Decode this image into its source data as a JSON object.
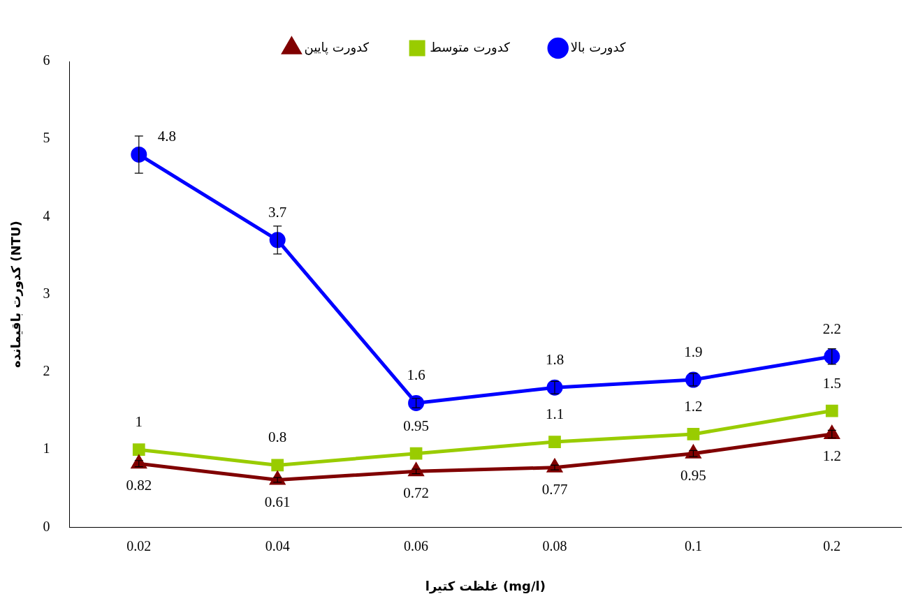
{
  "chart_data": {
    "type": "line",
    "xlabel": "غلظت کتیرا (mg/l)",
    "ylabel": "کدورت باقیمانده (NTU)",
    "categories": [
      "0.02",
      "0.04",
      "0.06",
      "0.08",
      "0.1",
      "0.2"
    ],
    "series": [
      {
        "name": "کدورت پایین",
        "color": "#800000",
        "marker": "triangle",
        "values": [
          0.82,
          0.61,
          0.72,
          0.77,
          0.95,
          1.2
        ],
        "errors": [
          0.04,
          0.03,
          0.03,
          0.03,
          0.04,
          0.05
        ]
      },
      {
        "name": "کدورت متوسط",
        "color": "#99cc00",
        "marker": "square",
        "values": [
          1,
          0.8,
          0.95,
          1.1,
          1.2,
          1.5
        ]
      },
      {
        "name": "کدورت بالا",
        "color": "#0000ff",
        "marker": "circle",
        "values": [
          4.8,
          3.7,
          1.6,
          1.8,
          1.9,
          2.2
        ],
        "errors": [
          0.24,
          0.18,
          0.06,
          0.08,
          0.08,
          0.1
        ]
      }
    ],
    "ylim": [
      0,
      6
    ],
    "yticks": [
      0,
      1,
      2,
      3,
      4,
      5,
      6
    ],
    "grid": false,
    "legend": "top",
    "data_labels": true
  }
}
